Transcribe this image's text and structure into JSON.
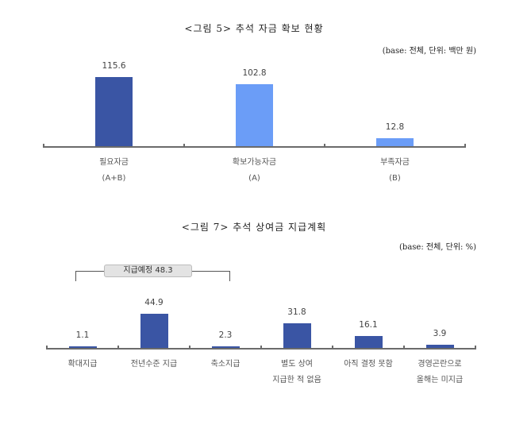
{
  "chart_data": [
    {
      "type": "bar",
      "title": "<그림 5> 추석 자금 확보 현황",
      "unit_note": "(base: 전체, 단위: 백만 원)",
      "categories": [
        "필요자금 (A+B)",
        "확보가능자금 (A)",
        "부족자금 (B)"
      ],
      "category_lines": [
        [
          "필요자금",
          "(A+B)"
        ],
        [
          "확보가능자금",
          "(A)"
        ],
        [
          "부족자금",
          "(B)"
        ]
      ],
      "values": [
        115.6,
        102.8,
        12.8
      ],
      "value_labels": [
        "115.6",
        "102.8",
        "12.8"
      ],
      "colors": [
        "#3a55a4",
        "#6b9df7",
        "#6b9df7"
      ],
      "xlabel": "",
      "ylabel": "",
      "grid": false,
      "legend": "none"
    },
    {
      "type": "bar",
      "title": "<그림 7> 추석 상여금 지급계획",
      "unit_note": "(base: 전체, 단위: %)",
      "categories": [
        "확대지급",
        "전년수준 지급",
        "축소지급",
        "별도 상여 지급한 적 없음",
        "아직 결정 못함",
        "경영곤란으로 올해는 미지급"
      ],
      "category_lines": [
        [
          "확대지급"
        ],
        [
          "전년수준 지급"
        ],
        [
          "축소지급"
        ],
        [
          "별도 상여",
          "지급한 적 없음"
        ],
        [
          "아직 결정 못함"
        ],
        [
          "경영곤란으로",
          "올해는 미지급"
        ]
      ],
      "values": [
        1.1,
        44.9,
        2.3,
        31.8,
        16.1,
        3.9
      ],
      "value_labels": [
        "1.1",
        "44.9",
        "2.3",
        "31.8",
        "16.1",
        "3.9"
      ],
      "color": "#3a55a4",
      "annotation": {
        "label": "지급예정 48.3",
        "spans": [
          "확대지급",
          "전년수준 지급",
          "축소지급"
        ],
        "value": 48.3
      },
      "xlabel": "",
      "ylabel": "",
      "grid": false,
      "legend": "none"
    }
  ]
}
